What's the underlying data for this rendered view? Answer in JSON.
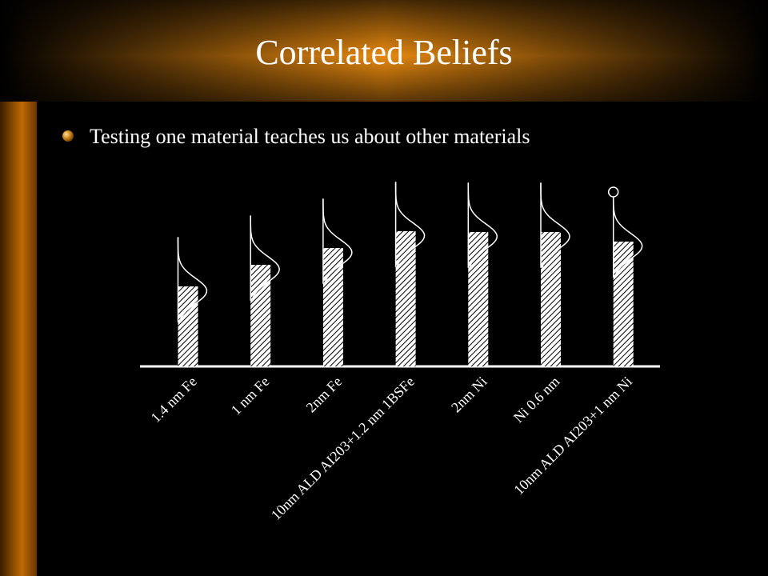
{
  "chart_data": {
    "type": "bar",
    "title": "Correlated Beliefs",
    "subtitle": "Testing one material teaches us about other materials",
    "categories": [
      "1.4 nm Fe",
      "1 nm Fe",
      "2nm Fe",
      "10nm ALD AI203+1.2 nm 1BSFe",
      "2nm Ni",
      "Ni 0.6 nm",
      "10nm ALD AI203+1 nm Ni"
    ],
    "values": [
      100,
      127,
      148,
      169,
      168,
      168,
      156
    ],
    "ylim": [
      0,
      250
    ],
    "color": "#ffffff"
  }
}
